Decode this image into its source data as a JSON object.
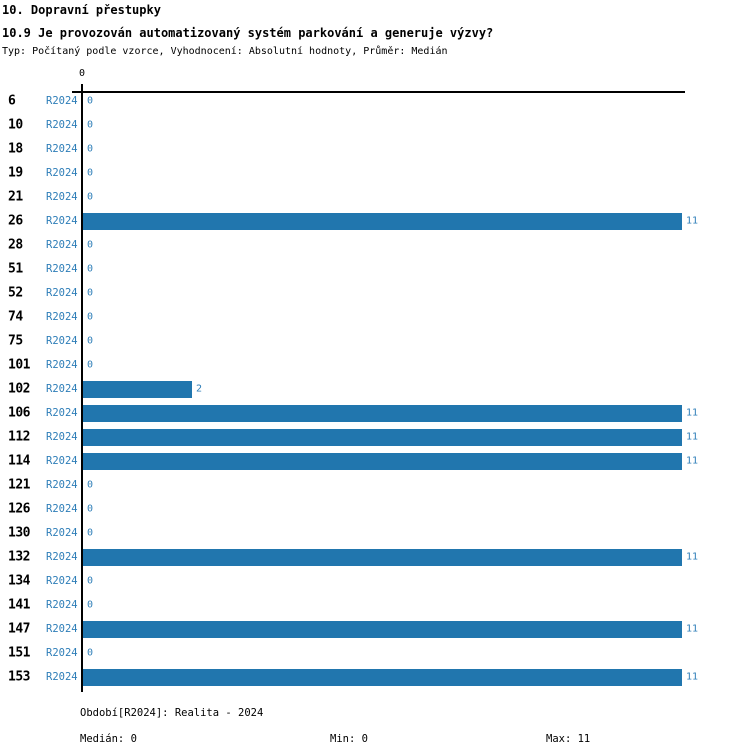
{
  "header": {
    "title": "10. Dopravní přestupky",
    "question": "10.9 Je provozován automatizovaný systém parkování a generuje výzvy?",
    "meta": "Typ: Počítaný podle vzorce, Vyhodnocení: Absolutní hodnoty, Průměr: Medián"
  },
  "chart_data": {
    "type": "bar",
    "orientation": "horizontal",
    "title": "10.9 Je provozován automatizovaný systém parkování a generuje výzvy?",
    "categories": [
      "6",
      "10",
      "18",
      "19",
      "21",
      "26",
      "28",
      "51",
      "52",
      "74",
      "75",
      "101",
      "102",
      "106",
      "112",
      "114",
      "121",
      "126",
      "130",
      "132",
      "134",
      "141",
      "147",
      "151",
      "153"
    ],
    "series": [
      {
        "name": "R2024",
        "values": [
          0,
          0,
          0,
          0,
          0,
          11,
          0,
          0,
          0,
          0,
          0,
          0,
          2,
          11,
          11,
          11,
          0,
          0,
          0,
          11,
          0,
          0,
          11,
          0,
          11
        ]
      }
    ],
    "xlim": [
      0,
      11
    ],
    "axis_zero_label": "0",
    "grid": false,
    "legend_position": "none",
    "bar_color": "#2176ae",
    "text_color": "#2e7eb8",
    "value_labels_shown": true
  },
  "footer": {
    "period": "Období[R2024]: Realita - 2024",
    "median_label": "Medián: 0",
    "min_label": "Min: 0",
    "max_label": "Max: 11"
  }
}
